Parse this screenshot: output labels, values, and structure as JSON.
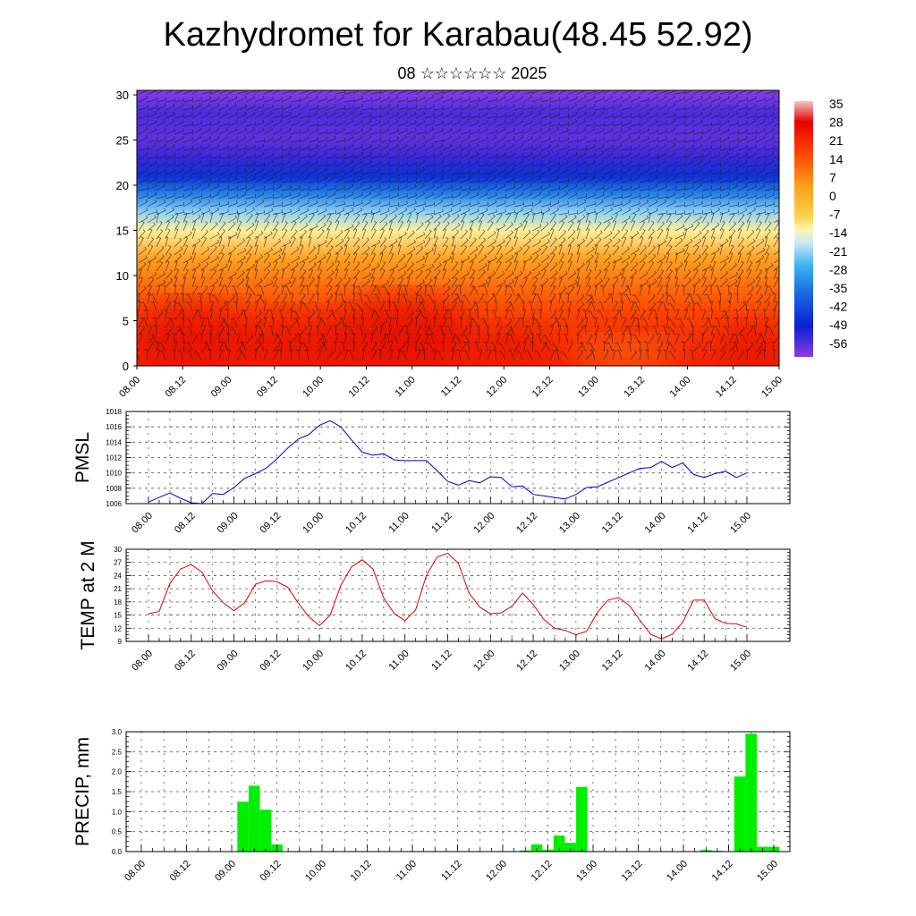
{
  "header": {
    "title": "Kazhydromet for Karabau(48.45 52.92)",
    "subtitle": "08 ☆☆☆☆☆☆ 2025"
  },
  "colors": {
    "pmsl_line": "#0000cc",
    "temp_line": "#dd0000",
    "precip_bar": "#00ee00",
    "grid": "#555555"
  },
  "chart_data": [
    {
      "type": "heatmap",
      "title": "",
      "xlabel": "",
      "ylabel": "",
      "x_tick_labels": [
        "08.00",
        "08.12",
        "09.00",
        "09.12",
        "10.00",
        "10.12",
        "11.00",
        "11.12",
        "12.00",
        "12.12",
        "13.00",
        "13.12",
        "14.00",
        "14.12",
        "15.00"
      ],
      "y_ticks": [
        0,
        5,
        10,
        15,
        20,
        25,
        30
      ],
      "ylim": [
        0,
        30.5
      ],
      "colorbar_labels": [
        "35",
        "28",
        "21",
        "14",
        "7",
        "0",
        "-7",
        "-14",
        "-21",
        "-28",
        "-35",
        "-42",
        "-49",
        "-56"
      ],
      "colorbar_stops": [
        {
          "value": 38,
          "color": "#f7c5c5"
        },
        {
          "value": 30,
          "color": "#e60000"
        },
        {
          "value": 18,
          "color": "#ff4400"
        },
        {
          "value": 6,
          "color": "#ff9a1a"
        },
        {
          "value": -6,
          "color": "#ffd24a"
        },
        {
          "value": -11,
          "color": "#fff6b0"
        },
        {
          "value": -16,
          "color": "#cfeaf5"
        },
        {
          "value": -25,
          "color": "#3cb4f0"
        },
        {
          "value": -35,
          "color": "#1a6ee6"
        },
        {
          "value": -48,
          "color": "#0a1ed2"
        },
        {
          "value": -60,
          "color": "#8a3ce6"
        }
      ],
      "legend": "right",
      "overlay": "wind barbs",
      "vertical_profile_degC": [
        {
          "level": 0,
          "value": 24
        },
        {
          "level": 3,
          "value": 22
        },
        {
          "level": 6,
          "value": 18
        },
        {
          "level": 9,
          "value": 12
        },
        {
          "level": 12,
          "value": 4
        },
        {
          "level": 15,
          "value": -10
        },
        {
          "level": 17,
          "value": -20
        },
        {
          "level": 19,
          "value": -32
        },
        {
          "level": 21,
          "value": -45
        },
        {
          "level": 23,
          "value": -52
        },
        {
          "level": 25,
          "value": -56
        },
        {
          "level": 28,
          "value": -54
        },
        {
          "level": 30.5,
          "value": -60
        }
      ]
    },
    {
      "type": "line",
      "title": "",
      "ylabel": "PMSL",
      "xlabel": "",
      "x_tick_labels": [
        "08.00",
        "08.12",
        "09.00",
        "09.12",
        "10.00",
        "10.12",
        "11.00",
        "11.12",
        "12.00",
        "12.12",
        "13.00",
        "13.12",
        "14.00",
        "14.12",
        "15.00"
      ],
      "ylim": [
        1006,
        1018
      ],
      "y_ticks": [
        1006,
        1008,
        1010,
        1012,
        1014,
        1016,
        1018
      ],
      "x_step_hours": 3,
      "series": [
        {
          "values": [
            1006.2,
            1006.8,
            1007.4,
            1006.7,
            1006.1,
            1006.0,
            1007.3,
            1007.2,
            1008.1,
            1009.3,
            1009.9,
            1010.6,
            1011.8,
            1013.2,
            1014.4,
            1015.0,
            1016.2,
            1016.8,
            1016.0,
            1014.3,
            1012.7,
            1012.3,
            1012.5,
            1011.7,
            1011.6,
            1011.6,
            1011.6,
            1010.3,
            1008.9,
            1008.4,
            1009.0,
            1008.7,
            1009.5,
            1009.4,
            1008.2,
            1008.3,
            1007.2,
            1007.0,
            1006.8,
            1006.6,
            1007.2,
            1008.1,
            1008.2,
            1008.8,
            1009.4,
            1010.0,
            1010.6,
            1010.7,
            1011.5,
            1010.7,
            1011.3,
            1009.8,
            1009.4,
            1009.9,
            1010.2,
            1009.4,
            1010.0
          ]
        }
      ]
    },
    {
      "type": "line",
      "title": "",
      "ylabel": "TEMP at 2 M",
      "xlabel": "",
      "x_tick_labels": [
        "08.00",
        "08.12",
        "09.00",
        "09.12",
        "10.00",
        "10.12",
        "11.00",
        "11.12",
        "12.00",
        "12.12",
        "13.00",
        "13.12",
        "14.00",
        "14.12",
        "15.00"
      ],
      "ylim": [
        9,
        30
      ],
      "y_ticks": [
        9,
        12,
        15,
        18,
        21,
        24,
        27,
        30
      ],
      "x_step_hours": 3,
      "series": [
        {
          "values": [
            15.3,
            15.8,
            22.2,
            25.5,
            26.5,
            24.8,
            20.5,
            17.8,
            16.0,
            17.8,
            22.0,
            22.8,
            22.6,
            21.4,
            17.8,
            14.6,
            12.6,
            15.0,
            21.8,
            26.0,
            27.6,
            25.5,
            19.0,
            15.3,
            13.7,
            16.2,
            24.0,
            28.2,
            29.1,
            26.8,
            20.0,
            16.8,
            15.3,
            15.5,
            17.0,
            20.0,
            17.4,
            14.0,
            12.0,
            11.5,
            10.5,
            11.3,
            15.6,
            18.4,
            19.0,
            17.2,
            13.8,
            10.6,
            9.6,
            10.6,
            13.4,
            18.4,
            18.4,
            14.2,
            13.1,
            13.0,
            12.2
          ]
        }
      ]
    },
    {
      "type": "bar",
      "title": "",
      "ylabel": "PRECIP, mm",
      "xlabel": "",
      "x_tick_labels": [
        "08.00",
        "08.12",
        "09.00",
        "09.12",
        "10.00",
        "10.12",
        "11.00",
        "11.12",
        "12.00",
        "12.12",
        "13.00",
        "13.12",
        "14.00",
        "14.12",
        "15.00"
      ],
      "ylim": [
        0,
        3.0
      ],
      "y_ticks": [
        0.0,
        0.5,
        1.0,
        1.5,
        2.0,
        2.5,
        3.0
      ],
      "y_tick_labels": [
        "0.0",
        "0.5",
        "1.0",
        "1.5",
        "2.0",
        "2.5",
        "3.0"
      ],
      "x_step_hours": 3,
      "values": [
        0,
        0,
        0,
        0,
        0,
        0,
        0,
        0,
        0,
        1.25,
        1.65,
        1.05,
        0.18,
        0,
        0,
        0,
        0,
        0,
        0,
        0,
        0,
        0,
        0,
        0,
        0,
        0,
        0,
        0,
        0,
        0,
        0,
        0,
        0,
        0,
        0.03,
        0.18,
        0.05,
        0.4,
        0.22,
        1.62,
        0,
        0,
        0,
        0,
        0,
        0,
        0,
        0,
        0,
        0,
        0.04,
        0.02,
        0,
        1.88,
        2.95,
        0.12,
        0.12
      ]
    }
  ]
}
